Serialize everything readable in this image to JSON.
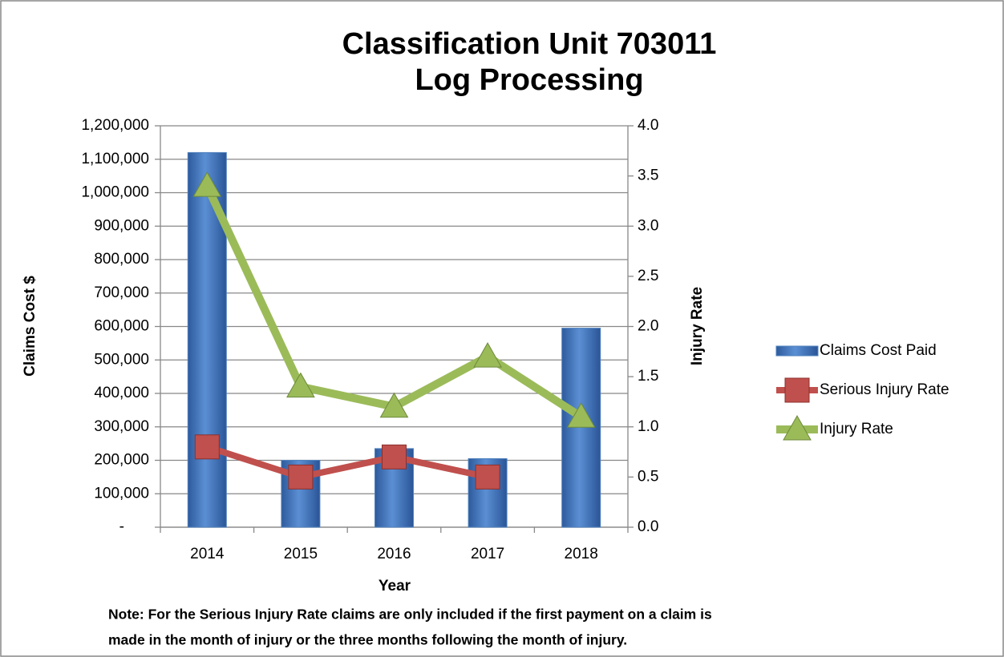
{
  "chart_data": {
    "type": "combo",
    "title": [
      "Classification Unit 703011",
      "Log Processing"
    ],
    "x_label": "Year",
    "y_label": "Claims Cost $",
    "y2_label": "Injury Rate",
    "note": [
      "Note:  For the Serious Injury Rate claims are only included if the first payment on a claim is",
      "made in the month of injury or the three months following the month of injury."
    ],
    "categories": [
      "2014",
      "2015",
      "2016",
      "2017",
      "2018"
    ],
    "series": [
      {
        "name": "Claims Cost Paid",
        "type": "bar",
        "axis": "y",
        "color": "#4f81bd",
        "values": [
          1120000,
          200000,
          235000,
          205000,
          595000
        ]
      },
      {
        "name": "Serious Injury Rate",
        "type": "line",
        "marker": "square",
        "axis": "y2",
        "color": "#c0504d",
        "values": [
          0.8,
          0.5,
          0.7,
          0.5,
          null
        ]
      },
      {
        "name": "Injury Rate",
        "type": "line",
        "marker": "triangle",
        "axis": "y2",
        "color": "#9bbb59",
        "values": [
          3.4,
          1.4,
          1.2,
          1.7,
          1.1
        ]
      }
    ],
    "ylim": [
      0,
      1200000
    ],
    "yticks": [
      {
        "value": 0,
        "label": "-"
      },
      {
        "value": 100000,
        "label": "100,000"
      },
      {
        "value": 200000,
        "label": "200,000"
      },
      {
        "value": 300000,
        "label": "300,000"
      },
      {
        "value": 400000,
        "label": "400,000"
      },
      {
        "value": 500000,
        "label": "500,000"
      },
      {
        "value": 600000,
        "label": "600,000"
      },
      {
        "value": 700000,
        "label": "700,000"
      },
      {
        "value": 800000,
        "label": "800,000"
      },
      {
        "value": 900000,
        "label": "900,000"
      },
      {
        "value": 1000000,
        "label": "1,000,000"
      },
      {
        "value": 1100000,
        "label": "1,100,000"
      },
      {
        "value": 1200000,
        "label": "1,200,000"
      }
    ],
    "y2lim": [
      0,
      4
    ],
    "y2ticks": [
      {
        "value": 0,
        "label": "0.0"
      },
      0.5,
      {
        "value": 1,
        "label": "1.0"
      },
      1.5,
      {
        "value": 2,
        "label": "2.0"
      },
      2.5,
      {
        "value": 3,
        "label": "3.0"
      },
      3.5,
      {
        "value": 4,
        "label": "4.0"
      }
    ],
    "grid": true,
    "legend": "right"
  }
}
